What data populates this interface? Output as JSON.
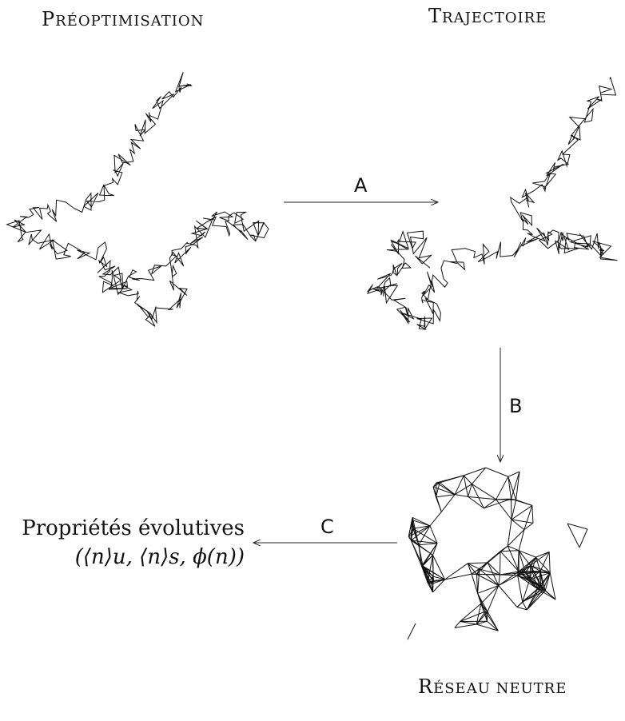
{
  "panels": {
    "preoptimisation": {
      "first": "P",
      "rest": "réoptimisation"
    },
    "trajectoire": {
      "first": "T",
      "rest": "rajectoire"
    },
    "reseau_neutre": {
      "first": "R",
      "rest": "éseau neutre"
    }
  },
  "arrows": {
    "a": "A",
    "b": "B",
    "c": "C"
  },
  "properties": {
    "label": "Propriétés évolutives",
    "formula": "(⟨n⟩u, ⟨n⟩s, ϕ(n))"
  }
}
